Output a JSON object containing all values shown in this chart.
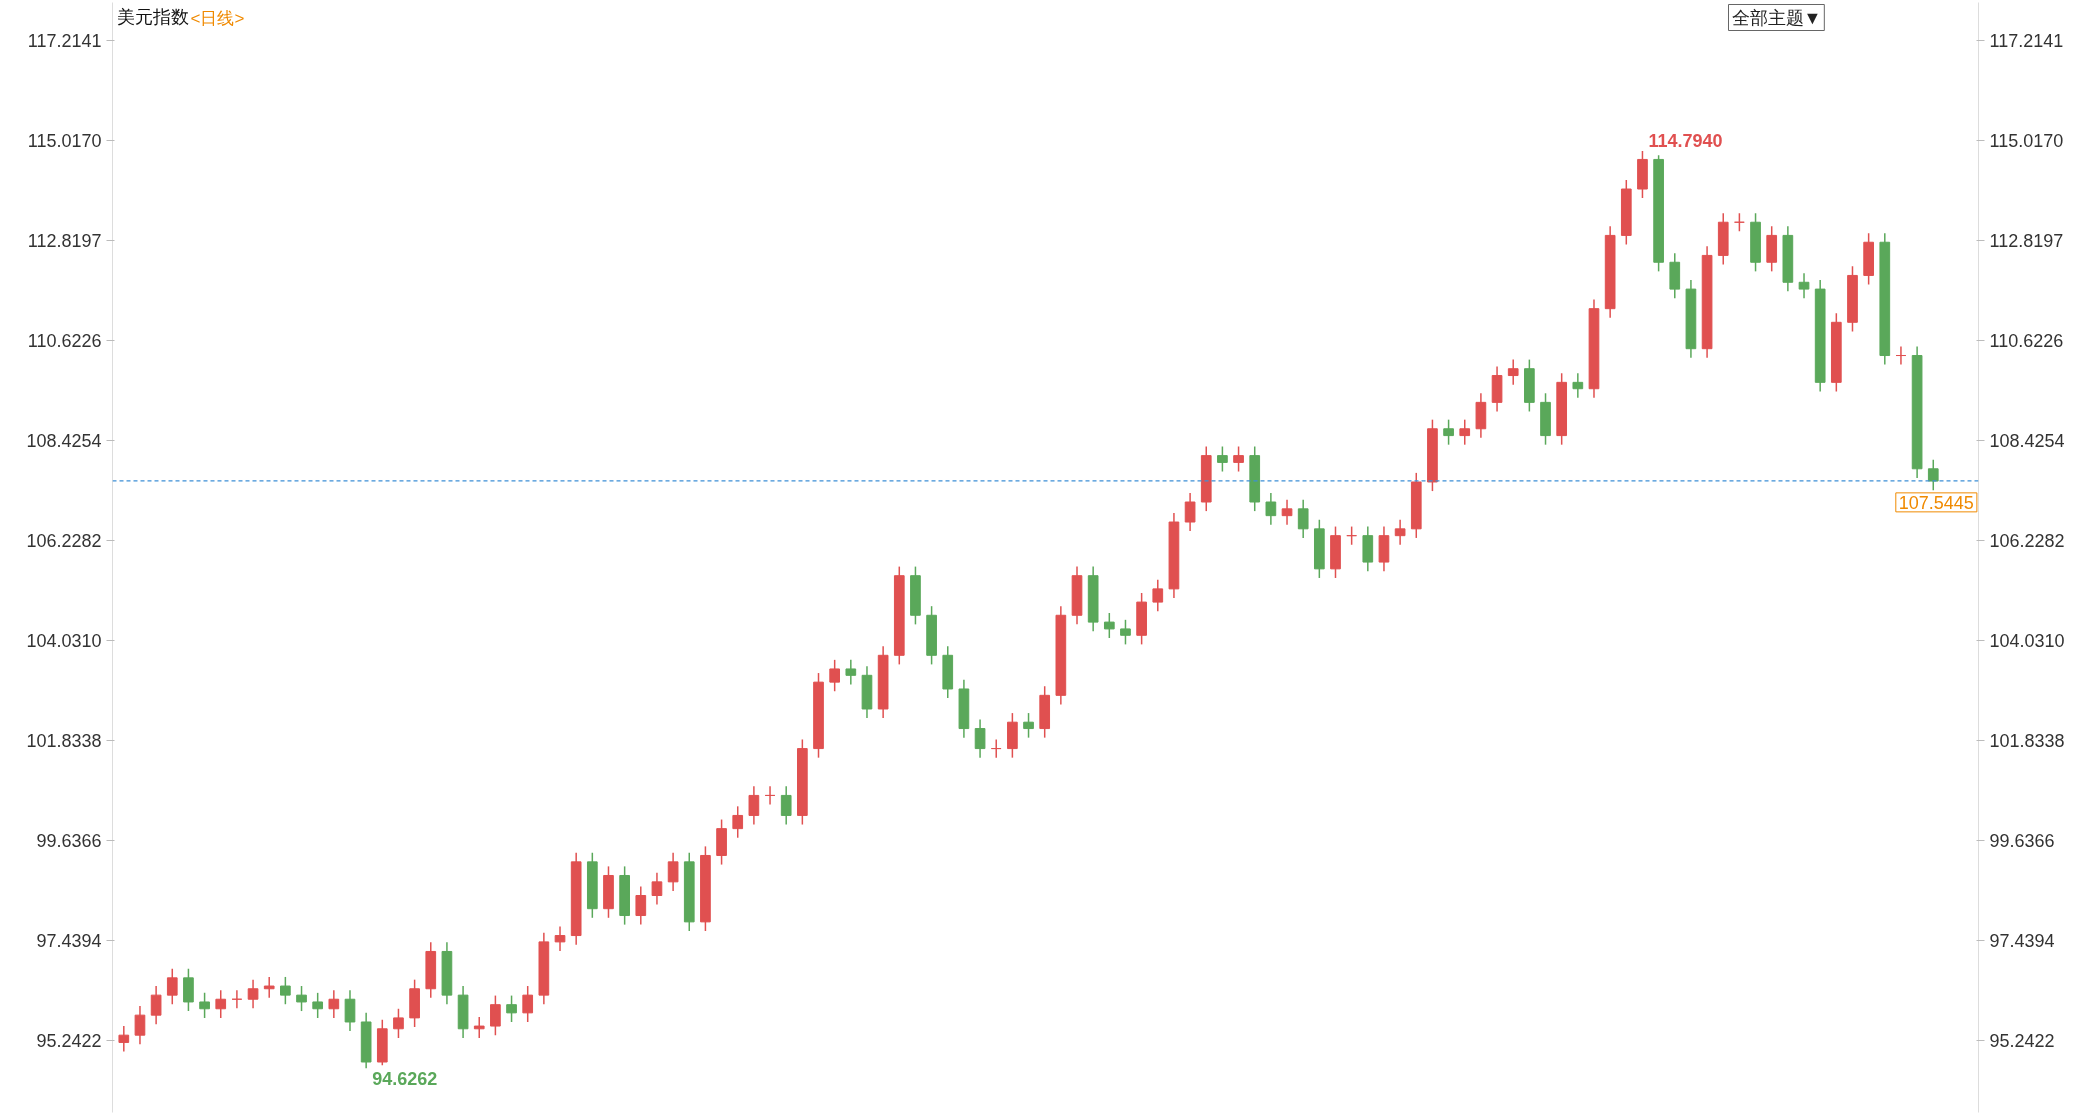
{
  "chart_data": {
    "type": "candlestick",
    "title": "美元指数",
    "subtitle": "<日线>",
    "annotations": [
      "114.7940",
      "94.6262",
      "全部主题▼"
    ],
    "colors": [
      "#e05050",
      "#e05050",
      "#e05050",
      "#e05050",
      "#5aa85a",
      "#5aa85a",
      "#e05050",
      "#e05050",
      "#e05050",
      "#e05050",
      "#5aa85a",
      "#5aa85a",
      "#5aa85a",
      "#e05050",
      "#5aa85a",
      "#5aa85a",
      "#e05050",
      "#e05050",
      "#e05050",
      "#e05050",
      "#5aa85a",
      "#5aa85a",
      "#e05050",
      "#e05050",
      "#5aa85a",
      "#e05050",
      "#e05050",
      "#e05050",
      "#e05050",
      "#5aa85a",
      "#e05050",
      "#5aa85a",
      "#e05050",
      "#e05050",
      "#e05050",
      "#5aa85a",
      "#e05050",
      "#e05050",
      "#e05050",
      "#e05050",
      "#e05050",
      "#5aa85a",
      "#e05050",
      "#e05050",
      "#e05050",
      "#5aa85a",
      "#5aa85a",
      "#e05050",
      "#e05050",
      "#5aa85a",
      "#5aa85a",
      "#5aa85a",
      "#5aa85a",
      "#5aa85a",
      "#e05050",
      "#e05050",
      "#5aa85a",
      "#e05050",
      "#e05050",
      "#e05050",
      "#5aa85a",
      "#5aa85a",
      "#5aa85a",
      "#e05050",
      "#e05050",
      "#e05050",
      "#e05050",
      "#e05050",
      "#5aa85a",
      "#e05050",
      "#5aa85a",
      "#5aa85a",
      "#e05050",
      "#5aa85a",
      "#5aa85a",
      "#e05050",
      "#e05050",
      "#5aa85a",
      "#e05050",
      "#e05050",
      "#e05050",
      "#e05050",
      "#5aa85a",
      "#e05050",
      "#e05050",
      "#e05050",
      "#e05050",
      "#5aa85a",
      "#5aa85a",
      "#e05050",
      "#5aa85a",
      "#e05050",
      "#e05050",
      "#e05050",
      "#e05050",
      "#5aa85a",
      "#5aa85a",
      "#5aa85a",
      "#e05050",
      "#e05050",
      "#e05050",
      "#5aa85a",
      "#e05050",
      "#5aa85a",
      "#5aa85a",
      "#5aa85a",
      "#e05050",
      "#e05050",
      "#e05050",
      "#5aa85a",
      "#e05050",
      "#5aa85a",
      "#5aa85a"
    ],
    "ylim": [
      93.66,
      118.06
    ],
    "yticks": [
      {
        "value": 95.2422,
        "label": "95.2422"
      },
      {
        "value": 97.4394,
        "label": "97.4394"
      },
      {
        "value": 99.6366,
        "label": "99.6366"
      },
      {
        "value": 101.8338,
        "label": "101.8338"
      },
      {
        "value": 104.031,
        "label": "104.0310"
      },
      {
        "value": 106.2282,
        "label": "106.2282"
      },
      {
        "value": 108.4254,
        "label": "108.4254"
      },
      {
        "value": 110.6226,
        "label": "110.6226"
      },
      {
        "value": 112.8197,
        "label": "112.8197"
      },
      {
        "value": 115.017,
        "label": "115.0170"
      },
      {
        "value": 117.2141,
        "label": "117.2141"
      }
    ],
    "y2lim": [
      93.66,
      118.06
    ],
    "y2ticks": [
      {
        "value": 95.2422,
        "label": "95.2422"
      },
      {
        "value": 97.4394,
        "label": "97.4394"
      },
      {
        "value": 99.6366,
        "label": "99.6366"
      },
      {
        "value": 101.8338,
        "label": "101.8338"
      },
      {
        "value": 104.031,
        "label": "104.0310"
      },
      {
        "value": 106.2282,
        "label": "106.2282"
      },
      {
        "value": 108.4254,
        "label": "108.4254"
      },
      {
        "value": 110.6226,
        "label": "110.6226"
      },
      {
        "value": 112.8197,
        "label": "112.8197"
      },
      {
        "value": 115.017,
        "label": "115.0170"
      },
      {
        "value": 117.2141,
        "label": "117.2141"
      }
    ],
    "tick_labels": "y",
    "grid": false,
    "ref_lines": [
      {
        "axis": "y",
        "value": 107.5445,
        "label": "107.5445",
        "color": "#3d8fd6",
        "line_style": "dashed"
      }
    ],
    "categories": [
      null,
      null,
      null,
      null,
      null,
      null,
      null,
      null,
      null,
      null,
      null,
      null,
      null,
      null,
      null,
      null,
      null,
      null,
      null,
      null,
      null,
      null,
      null,
      null,
      null,
      null,
      null,
      null,
      null,
      null,
      null,
      null,
      null,
      null,
      null,
      null,
      null,
      null,
      null,
      null,
      null,
      null,
      null,
      null,
      null,
      null,
      null,
      null,
      null,
      null,
      null,
      null,
      null,
      null,
      null,
      null,
      null,
      null,
      null,
      null,
      null,
      null,
      null,
      null,
      null,
      null,
      null,
      null,
      null,
      null,
      null,
      null,
      null,
      null,
      null,
      null,
      null,
      null,
      null,
      null,
      null,
      null,
      null,
      null,
      null,
      null,
      null,
      null,
      null,
      null,
      null,
      null,
      null,
      null,
      null,
      null,
      null,
      null,
      null,
      null,
      null,
      null,
      null,
      null,
      null,
      null,
      null,
      null,
      null,
      null,
      null,
      null,
      null
    ],
    "ohlc": [
      [
        95.2,
        95.56,
        95.0,
        95.36
      ],
      [
        95.36,
        96.0,
        95.16,
        95.8
      ],
      [
        95.8,
        96.44,
        95.6,
        96.24
      ],
      [
        96.24,
        96.82,
        96.04,
        96.62
      ],
      [
        96.62,
        96.82,
        95.89,
        96.09
      ],
      [
        96.09,
        96.29,
        95.74,
        95.94
      ],
      [
        95.94,
        96.35,
        95.74,
        96.15
      ],
      [
        96.15,
        96.35,
        95.95,
        96.15
      ],
      [
        96.15,
        96.58,
        95.95,
        96.38
      ],
      [
        96.38,
        96.64,
        96.18,
        96.44
      ],
      [
        96.44,
        96.64,
        96.04,
        96.24
      ],
      [
        96.24,
        96.44,
        95.89,
        96.09
      ],
      [
        96.09,
        96.29,
        95.74,
        95.94
      ],
      [
        95.94,
        96.35,
        95.74,
        96.15
      ],
      [
        96.15,
        96.35,
        95.45,
        95.65
      ],
      [
        95.65,
        95.85,
        94.63,
        94.77
      ],
      [
        94.77,
        95.7,
        94.7,
        95.5
      ],
      [
        95.5,
        95.94,
        95.3,
        95.74
      ],
      [
        95.74,
        96.58,
        95.54,
        96.38
      ],
      [
        96.38,
        97.4,
        96.18,
        97.2
      ],
      [
        97.2,
        97.4,
        96.04,
        96.24
      ],
      [
        96.24,
        96.44,
        95.3,
        95.5
      ],
      [
        95.5,
        95.76,
        95.3,
        95.56
      ],
      [
        95.56,
        96.23,
        95.36,
        96.03
      ],
      [
        96.03,
        96.23,
        95.65,
        95.85
      ],
      [
        95.85,
        96.44,
        95.65,
        96.24
      ],
      [
        96.24,
        97.61,
        96.04,
        97.41
      ],
      [
        97.41,
        97.75,
        97.21,
        97.55
      ],
      [
        97.55,
        99.37,
        97.35,
        99.17
      ],
      [
        99.17,
        99.37,
        97.94,
        98.14
      ],
      [
        98.14,
        99.07,
        97.94,
        98.87
      ],
      [
        98.87,
        99.07,
        97.79,
        97.99
      ],
      [
        97.99,
        98.63,
        97.79,
        98.43
      ],
      [
        98.43,
        98.93,
        98.23,
        98.73
      ],
      [
        98.73,
        99.37,
        98.53,
        99.17
      ],
      [
        99.17,
        99.37,
        97.65,
        97.85
      ],
      [
        97.85,
        99.51,
        97.65,
        99.31
      ],
      [
        99.31,
        100.1,
        99.11,
        99.9
      ],
      [
        99.9,
        100.39,
        99.7,
        100.19
      ],
      [
        100.19,
        100.83,
        99.99,
        100.63
      ],
      [
        100.63,
        100.83,
        100.43,
        100.63
      ],
      [
        100.63,
        100.83,
        99.99,
        100.19
      ],
      [
        100.19,
        101.86,
        99.99,
        101.66
      ],
      [
        101.66,
        103.32,
        101.46,
        103.12
      ],
      [
        103.12,
        103.61,
        102.92,
        103.41
      ],
      [
        103.41,
        103.61,
        103.07,
        103.27
      ],
      [
        103.27,
        103.47,
        102.33,
        102.53
      ],
      [
        102.53,
        103.91,
        102.33,
        103.71
      ],
      [
        103.71,
        105.66,
        103.51,
        105.46
      ],
      [
        105.46,
        105.66,
        104.39,
        104.59
      ],
      [
        104.59,
        104.79,
        103.51,
        103.71
      ],
      [
        103.71,
        103.91,
        102.77,
        102.97
      ],
      [
        102.97,
        103.17,
        101.9,
        102.1
      ],
      [
        102.1,
        102.3,
        101.46,
        101.66
      ],
      [
        101.66,
        101.86,
        101.46,
        101.66
      ],
      [
        101.66,
        102.44,
        101.46,
        102.24
      ],
      [
        102.24,
        102.44,
        101.9,
        102.1
      ],
      [
        102.1,
        103.03,
        101.9,
        102.83
      ],
      [
        102.83,
        104.79,
        102.63,
        104.59
      ],
      [
        104.59,
        105.66,
        104.39,
        105.46
      ],
      [
        105.46,
        105.66,
        104.24,
        104.44
      ],
      [
        104.44,
        104.64,
        104.09,
        104.29
      ],
      [
        104.29,
        104.49,
        103.95,
        104.15
      ],
      [
        104.15,
        105.08,
        103.95,
        104.88
      ],
      [
        104.88,
        105.37,
        104.68,
        105.17
      ],
      [
        105.17,
        106.84,
        104.97,
        106.64
      ],
      [
        106.64,
        107.28,
        106.44,
        107.08
      ],
      [
        107.08,
        108.3,
        106.88,
        108.1
      ],
      [
        108.1,
        108.3,
        107.75,
        107.95
      ],
      [
        107.95,
        108.3,
        107.75,
        108.1
      ],
      [
        108.1,
        108.3,
        106.88,
        107.08
      ],
      [
        107.08,
        107.28,
        106.58,
        106.78
      ],
      [
        106.78,
        107.13,
        106.58,
        106.93
      ],
      [
        106.93,
        107.13,
        106.29,
        106.49
      ],
      [
        106.49,
        106.69,
        105.41,
        105.61
      ],
      [
        105.61,
        106.54,
        105.41,
        106.34
      ],
      [
        106.34,
        106.54,
        106.14,
        106.34
      ],
      [
        106.34,
        106.54,
        105.56,
        105.76
      ],
      [
        105.76,
        106.54,
        105.56,
        106.34
      ],
      [
        106.34,
        106.69,
        106.14,
        106.49
      ],
      [
        106.49,
        107.72,
        106.29,
        107.52
      ],
      [
        107.52,
        108.89,
        107.32,
        108.69
      ],
      [
        108.69,
        108.89,
        108.34,
        108.54
      ],
      [
        108.54,
        108.89,
        108.34,
        108.69
      ],
      [
        108.69,
        109.47,
        108.49,
        109.27
      ],
      [
        109.27,
        110.06,
        109.07,
        109.86
      ],
      [
        109.86,
        110.21,
        109.66,
        110.01
      ],
      [
        110.01,
        110.21,
        109.07,
        109.27
      ],
      [
        109.27,
        109.47,
        108.34,
        108.54
      ],
      [
        108.54,
        109.91,
        108.34,
        109.71
      ],
      [
        109.71,
        109.91,
        109.37,
        109.57
      ],
      [
        109.57,
        111.53,
        109.37,
        111.33
      ],
      [
        111.33,
        113.14,
        111.13,
        112.94
      ],
      [
        112.94,
        114.16,
        112.74,
        113.96
      ],
      [
        113.96,
        114.794,
        113.76,
        114.61
      ],
      [
        114.61,
        114.7,
        112.15,
        112.35
      ],
      [
        112.35,
        112.55,
        111.56,
        111.76
      ],
      [
        111.76,
        111.96,
        110.25,
        110.45
      ],
      [
        110.45,
        112.7,
        110.25,
        112.5
      ],
      [
        112.5,
        113.43,
        112.3,
        113.23
      ],
      [
        113.23,
        113.43,
        113.03,
        113.23
      ],
      [
        113.23,
        113.43,
        112.15,
        112.35
      ],
      [
        112.35,
        113.14,
        112.15,
        112.94
      ],
      [
        112.94,
        113.14,
        111.71,
        111.91
      ],
      [
        111.91,
        112.11,
        111.56,
        111.76
      ],
      [
        111.76,
        111.96,
        109.51,
        109.71
      ],
      [
        109.71,
        111.23,
        109.51,
        111.03
      ],
      [
        111.03,
        112.26,
        110.83,
        112.06
      ],
      [
        112.06,
        112.99,
        111.86,
        112.79
      ],
      [
        112.79,
        112.99,
        110.1,
        110.3
      ],
      [
        110.3,
        110.5,
        110.1,
        110.3
      ],
      [
        110.3,
        110.5,
        107.61,
        107.81
      ],
      [
        107.81,
        108.01,
        107.34,
        107.54
      ]
    ]
  }
}
